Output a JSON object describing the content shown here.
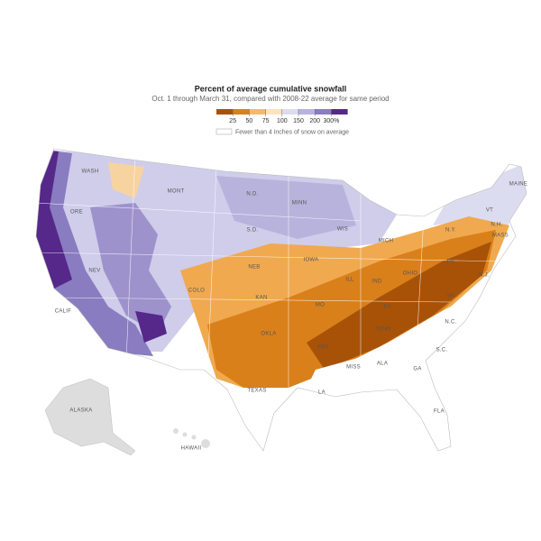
{
  "header": {
    "title": "Percent of average cumulative snowfall",
    "subtitle": "Oct. 1 through March 31, compared with 2008-22 average for same period"
  },
  "legend": {
    "colors": [
      "#a85208",
      "#d9801a",
      "#f7b86a",
      "#fde3c1",
      "#dcdcf0",
      "#b8b3dc",
      "#8a7cc0",
      "#55288a"
    ],
    "ticks": [
      "25",
      "50",
      "75",
      "100",
      "150",
      "200",
      "300%"
    ],
    "note": "Fewer than 4 inches of snow on average"
  },
  "map": {
    "labels": [
      "WASH",
      "MONT",
      "N.D.",
      "MINN",
      "ORE",
      "S.D.",
      "WIS",
      "MICH",
      "MAINE",
      "N.Y.",
      "VT",
      "N.H.",
      "MASS",
      "NEB",
      "IOWA",
      "COLO",
      "ILL",
      "IND",
      "OHIO",
      "PA",
      "KAN",
      "MO",
      "KY",
      "VA",
      "N.J.",
      "OKLA",
      "TENN",
      "N.C.",
      "ARK",
      "S.C.",
      "MISS",
      "ALA",
      "GA",
      "TEXAS",
      "LA",
      "FLA",
      "NEV",
      "CALIF",
      "ALASKA",
      "HAWAII"
    ]
  }
}
